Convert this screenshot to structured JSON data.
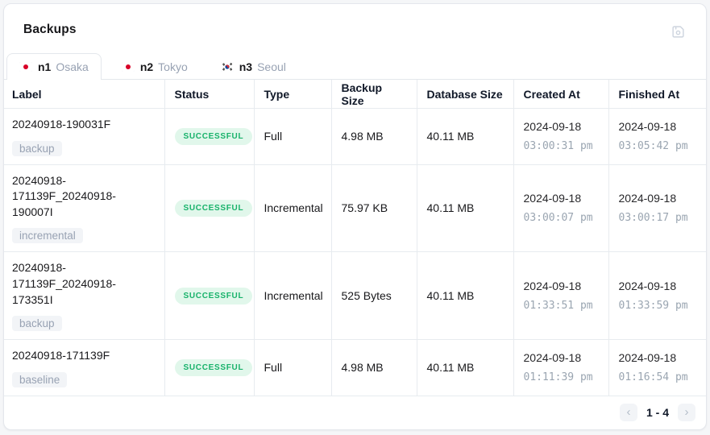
{
  "panel": {
    "title": "Backups"
  },
  "tabs": [
    {
      "node": "n1",
      "city": "Osaka",
      "flag": "japan",
      "selected": true
    },
    {
      "node": "n2",
      "city": "Tokyo",
      "flag": "japan",
      "selected": false
    },
    {
      "node": "n3",
      "city": "Seoul",
      "flag": "south-korea",
      "selected": false
    }
  ],
  "table": {
    "columns": [
      "Label",
      "Status",
      "Type",
      "Backup Size",
      "Database Size",
      "Created At",
      "Finished At"
    ],
    "rows": [
      {
        "label": "20240918-190031F",
        "tag": "backup",
        "status": "SUCCESSFUL",
        "type": "Full",
        "backup_size": "4.98 MB",
        "database_size": "40.11 MB",
        "created_date": "2024-09-18",
        "created_time": "03:00:31 pm",
        "finished_date": "2024-09-18",
        "finished_time": "03:05:42 pm"
      },
      {
        "label": "20240918-171139F_20240918-190007I",
        "tag": "incremental",
        "status": "SUCCESSFUL",
        "type": "Incremental",
        "backup_size": "75.97 KB",
        "database_size": "40.11 MB",
        "created_date": "2024-09-18",
        "created_time": "03:00:07 pm",
        "finished_date": "2024-09-18",
        "finished_time": "03:00:17 pm"
      },
      {
        "label": "20240918-171139F_20240918-173351I",
        "tag": "backup",
        "status": "SUCCESSFUL",
        "type": "Incremental",
        "backup_size": "525 Bytes",
        "database_size": "40.11 MB",
        "created_date": "2024-09-18",
        "created_time": "01:33:51 pm",
        "finished_date": "2024-09-18",
        "finished_time": "01:33:59 pm"
      },
      {
        "label": "20240918-171139F",
        "tag": "baseline",
        "status": "SUCCESSFUL",
        "type": "Full",
        "backup_size": "4.98 MB",
        "database_size": "40.11 MB",
        "created_date": "2024-09-18",
        "created_time": "01:11:39 pm",
        "finished_date": "2024-09-18",
        "finished_time": "01:16:54 pm"
      }
    ]
  },
  "pagination": {
    "prev": "‹",
    "range": "1 - 4",
    "next": "›"
  },
  "colors": {
    "badge_bg": "#e1f7eb",
    "badge_text": "#17b26a",
    "tag_bg": "#f2f4f7",
    "tag_text": "#98a2b3",
    "border": "#e4e7ec",
    "muted": "#9aa5b1"
  }
}
